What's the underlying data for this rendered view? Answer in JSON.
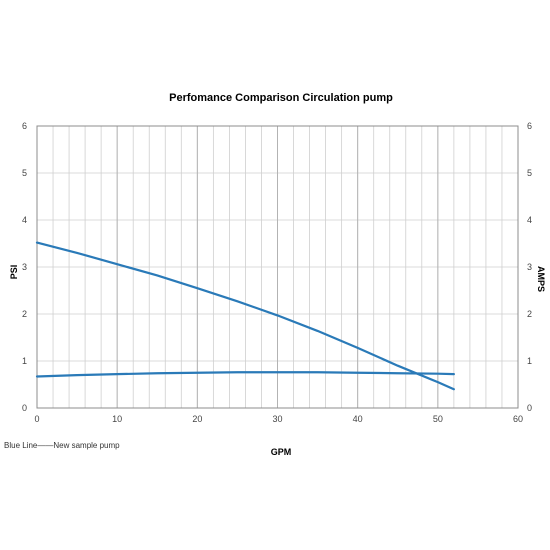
{
  "chart_data": {
    "type": "line",
    "title": "Perfomance Comparison Circulation pump",
    "xlabel": "GPM",
    "ylabel_left": "PSI",
    "ylabel_right": "AMPS",
    "xlim": [
      0,
      60
    ],
    "ylim_left": [
      0,
      6
    ],
    "ylim_right": [
      0,
      6
    ],
    "x_ticks": [
      "0",
      "10",
      "20",
      "30",
      "40",
      "50",
      "60"
    ],
    "y_ticks_left": [
      "0",
      "1",
      "2",
      "3",
      "4",
      "5",
      "6"
    ],
    "y_ticks_right": [
      "0",
      "1",
      "2",
      "3",
      "4",
      "5",
      "6"
    ],
    "x_minor_step": 2,
    "grid": true,
    "series": [
      {
        "color": "#2a7ab8",
        "axis": "left",
        "x": [
          0,
          5,
          10,
          15,
          20,
          25,
          30,
          35,
          40,
          45,
          50,
          52
        ],
        "y": [
          3.52,
          3.3,
          3.06,
          2.82,
          2.55,
          2.27,
          1.97,
          1.64,
          1.28,
          0.9,
          0.55,
          0.4
        ]
      },
      {
        "color": "#2a7ab8",
        "axis": "right",
        "x": [
          0,
          5,
          10,
          15,
          20,
          25,
          30,
          35,
          40,
          45,
          50,
          52
        ],
        "y": [
          0.67,
          0.7,
          0.72,
          0.74,
          0.75,
          0.76,
          0.76,
          0.76,
          0.75,
          0.74,
          0.73,
          0.72
        ]
      }
    ]
  },
  "note": "Blue Line——New sample pump"
}
